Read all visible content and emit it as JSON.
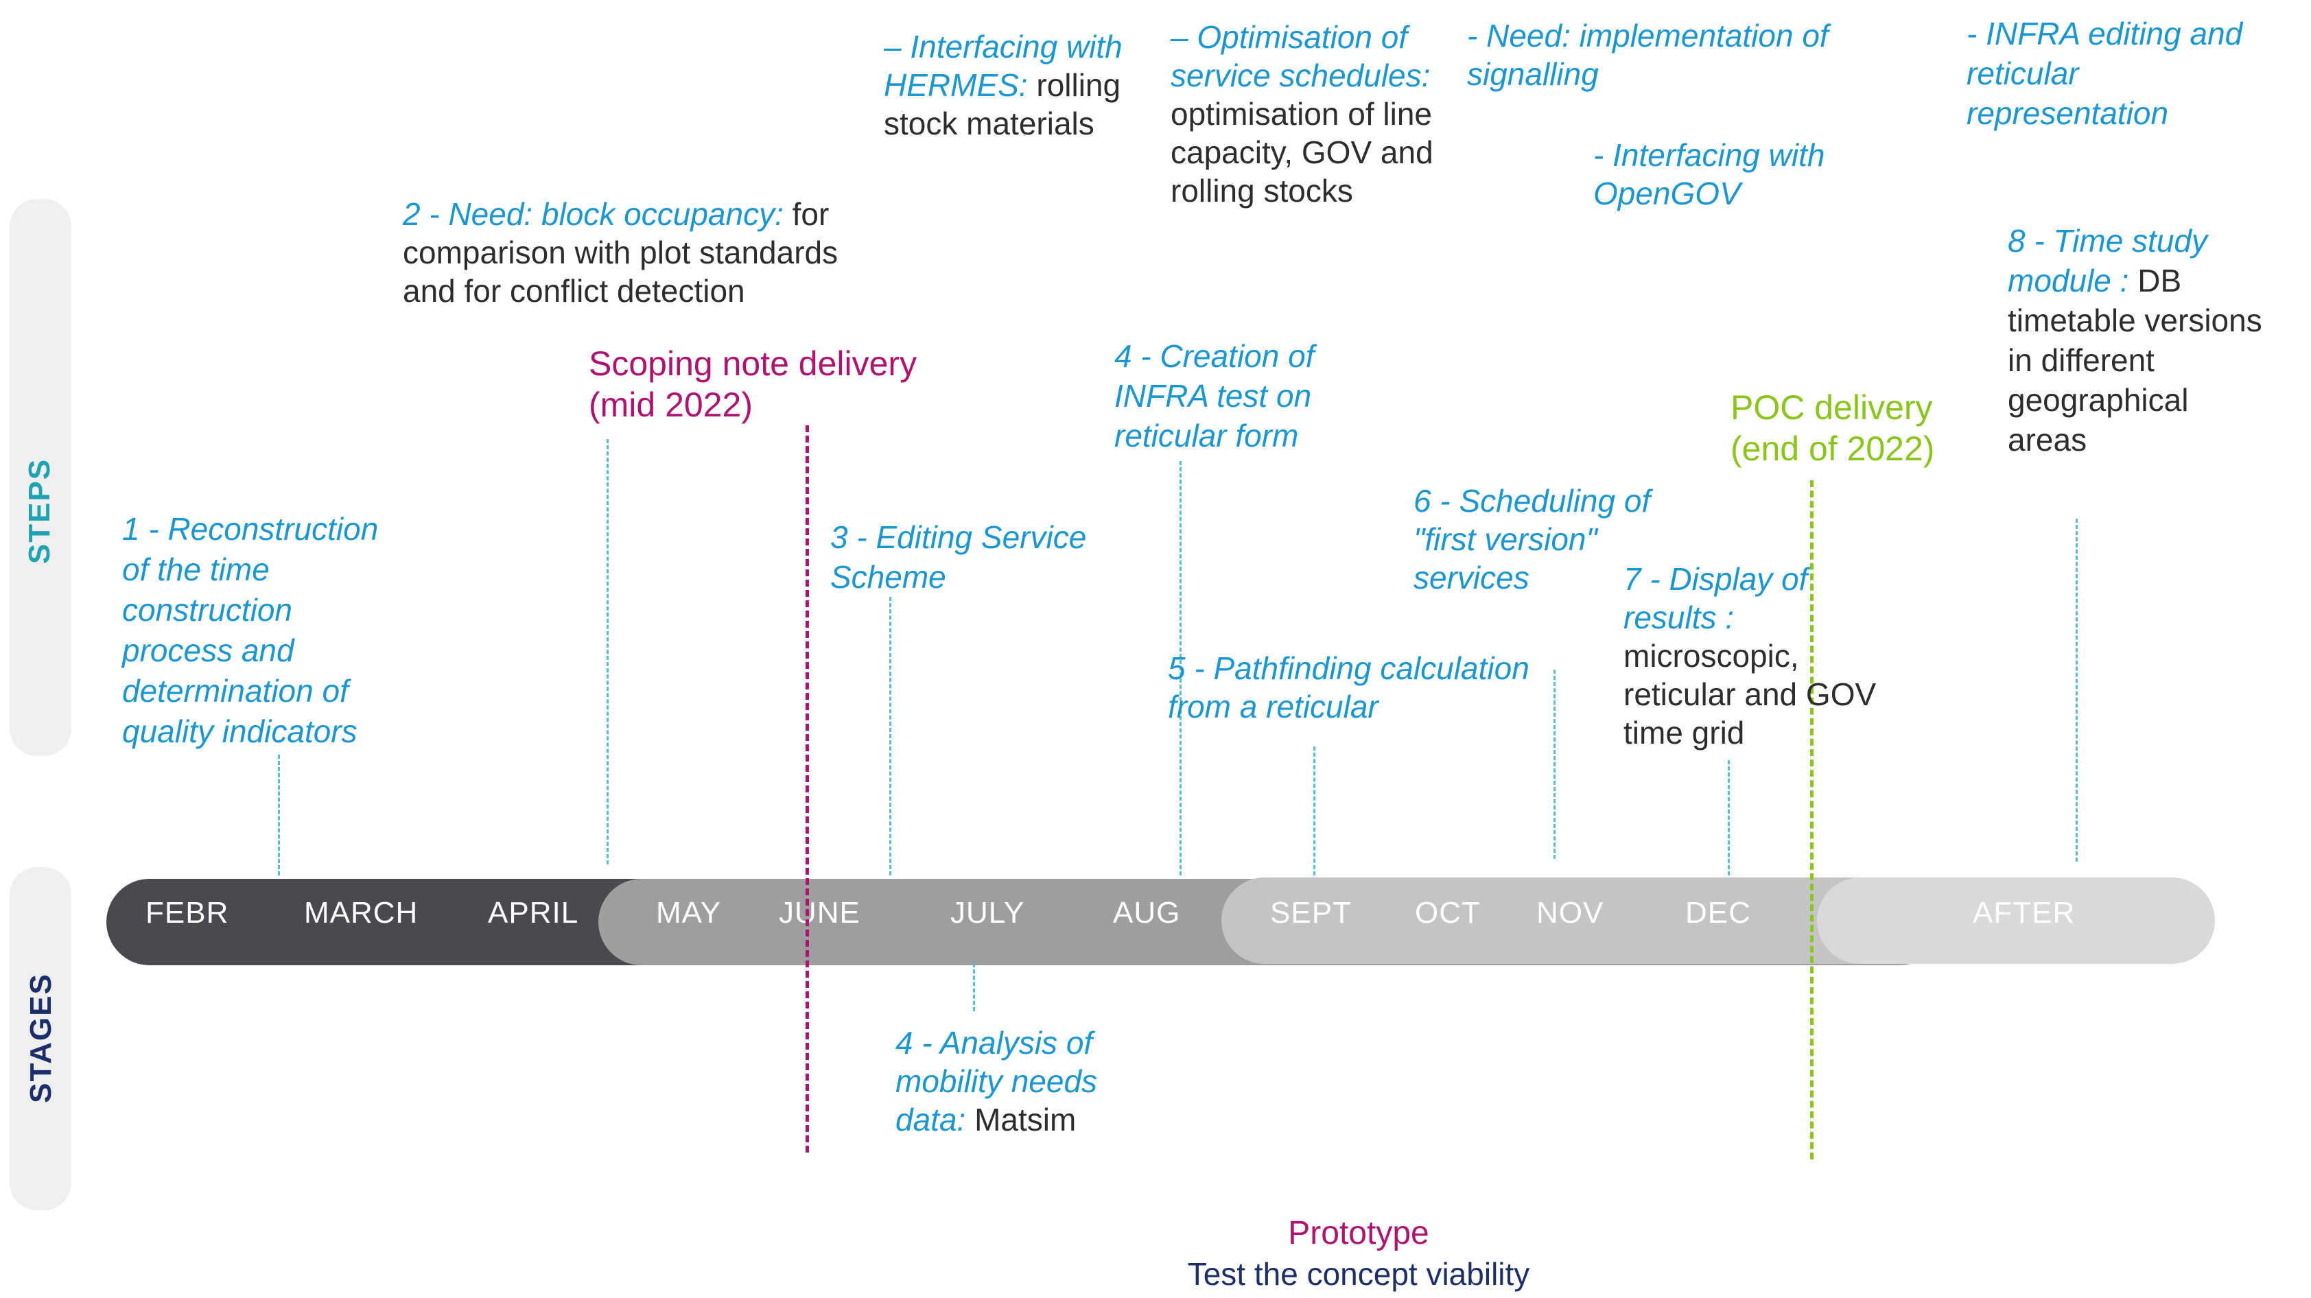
{
  "colors": {
    "steps_text": "#1fa3b3",
    "stages_text": "#1c2f6b",
    "step_blue": "#1a96d3",
    "body_text": "#2d2d2d",
    "scoping": "#b0126f",
    "poc": "#8ac51a",
    "bar_dark": "#4a4a4e",
    "bar_mid": "#9e9e9e",
    "bar_light": "#c4c4c4",
    "bar_lightest": "#d9d9d9"
  },
  "side": {
    "steps": "STEPS",
    "stages": "STAGES"
  },
  "months": [
    "FEBR",
    "MARCH",
    "APRIL",
    "MAY",
    "JUNE",
    "JULY",
    "AUG",
    "SEPT",
    "OCT",
    "NOV",
    "DEC",
    "AFTER"
  ],
  "milestones": {
    "scoping": {
      "line1": "Scoping note delivery",
      "line2": "(mid 2022)"
    },
    "poc": {
      "line1": "POC delivery",
      "line2": "(end of 2022)"
    }
  },
  "steps": {
    "s1": {
      "blue": "1 - Reconstruction of the time construction process and determination of quality indicators",
      "plain": ""
    },
    "s2": {
      "blue": "2 - Need: block occupancy:",
      "plain": " for comparison with plot standards and for conflict detection"
    },
    "s3": {
      "blue": "3 - Editing Service Scheme",
      "plain": ""
    },
    "s4a": {
      "blue": "4 - Analysis of mobility needs data:",
      "plain": " Matsim"
    },
    "s4b": {
      "blue": "4 - Creation of INFRA test on reticular form",
      "plain": ""
    },
    "hermes": {
      "blue": "– Interfacing with HERMES:",
      "plain": " rolling stock materials"
    },
    "optim": {
      "blue": "– Optimisation of service schedules:",
      "plain": " optimisation of line capacity, GOV and rolling stocks"
    },
    "s5": {
      "blue": "5 - Pathfinding calculation from a reticular",
      "plain": ""
    },
    "s6": {
      "blue": "6 - Scheduling of \"first version\" services",
      "plain": ""
    },
    "signal": {
      "blue": "- Need: implementation of signalling",
      "plain": ""
    },
    "opengov": {
      "blue": "- Interfacing with OpenGOV",
      "plain": ""
    },
    "s7": {
      "blue": "7 - Display of results :",
      "plain": " microscopic, reticular and GOV time grid"
    },
    "infra": {
      "blue": "- INFRA editing and reticular representation",
      "plain": ""
    },
    "s8": {
      "blue": "8 - Time study module :",
      "plain": " DB timetable versions in different geographical areas"
    }
  },
  "footer": {
    "line1": "Prototype",
    "line2": "Test the concept viability"
  }
}
